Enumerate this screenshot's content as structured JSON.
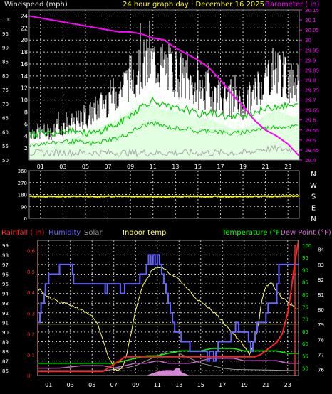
{
  "colors": {
    "wind": "#ffffff",
    "gust_fill": "#ccffcc",
    "avg_wind": "#00cc00",
    "gray": "#a8a8a8",
    "baro": "#ff00ff",
    "dir": "#ffff00",
    "rain": "#ff2020",
    "humidity": "#6666ff",
    "solar": "#999999",
    "indoor": "#ffff66",
    "temp": "#00ff00",
    "dew": "#cc66cc",
    "uv": "#ff99ff",
    "baseline": "#555500",
    "grid": "#ffffff"
  },
  "chart_data": [
    {
      "type": "line",
      "title": "24 hour graph day : December 16 2025",
      "left_label": "Windspeed (mph)",
      "right_label": "Barometer ( in)",
      "left_outer_ticks": [
        "100",
        "95",
        "90",
        "85",
        "80",
        "75",
        "70",
        "65",
        "60",
        "55",
        "50"
      ],
      "left_inner_ticks": [
        "24",
        "22",
        "20",
        "18",
        "16",
        "14",
        "12",
        "10",
        "8",
        "6",
        "4",
        "2"
      ],
      "right_ticks": [
        "30.15",
        "30.1",
        "30.05",
        "30",
        "29.95",
        "29.9",
        "29.85",
        "29.8",
        "29.75",
        "29.7",
        "29.65",
        "29.6",
        "29.55",
        "29.5",
        "29.45",
        "29.4"
      ],
      "x_ticks": [
        "01",
        "03",
        "05",
        "07",
        "09",
        "11",
        "13",
        "15",
        "17",
        "19",
        "21",
        "23"
      ],
      "wind_ylim": [
        0,
        25
      ],
      "baro_ylim": [
        29.4,
        30.15
      ],
      "grid": true,
      "series": [
        {
          "key": "gust",
          "x": [
            0,
            2,
            3,
            4,
            5,
            6,
            7,
            8,
            9,
            10,
            11,
            12,
            13,
            14,
            15,
            16,
            17,
            18,
            19,
            20,
            21,
            22,
            23,
            24
          ],
          "values": [
            6,
            6,
            7,
            8,
            9,
            11,
            13,
            15,
            18,
            20,
            21,
            20,
            19,
            17,
            15,
            15,
            14,
            12,
            12,
            14,
            18,
            20,
            17,
            16
          ]
        },
        {
          "key": "wind",
          "x": [
            0,
            2,
            3,
            4,
            5,
            6,
            7,
            8,
            9,
            10,
            11,
            12,
            13,
            14,
            15,
            16,
            17,
            18,
            19,
            20,
            21,
            22,
            23,
            24
          ],
          "values": [
            3,
            3,
            4,
            5,
            6,
            7,
            8,
            9,
            11,
            12,
            12,
            11,
            11,
            10,
            9,
            9,
            8,
            7,
            7,
            8,
            10,
            11,
            10,
            9
          ]
        },
        {
          "key": "avg_wind",
          "x": [
            0,
            1,
            2,
            3,
            4,
            5,
            6,
            7,
            8,
            9,
            10,
            11,
            12,
            13,
            14,
            15,
            16,
            17,
            18,
            19,
            20,
            21,
            22,
            23,
            24
          ],
          "values": [
            4,
            4.5,
            4.5,
            5,
            5,
            4.5,
            4.5,
            5.5,
            6,
            7.5,
            9,
            10,
            9,
            8.5,
            8.5,
            7.5,
            8,
            7.5,
            7,
            7.5,
            8,
            8.5,
            9,
            9,
            9
          ]
        },
        {
          "key": "baro",
          "x": [
            0,
            1,
            2,
            3,
            4,
            5,
            6,
            7,
            8,
            9,
            10,
            11,
            12,
            13,
            14,
            15,
            16,
            17,
            18,
            19,
            20,
            21,
            22,
            23,
            24
          ],
          "values": [
            30.12,
            30.11,
            30.1,
            30.09,
            30.08,
            30.07,
            30.06,
            30.05,
            30.04,
            30.04,
            30.03,
            30.01,
            30.0,
            29.96,
            29.93,
            29.9,
            29.86,
            29.8,
            29.73,
            29.67,
            29.6,
            29.55,
            29.52,
            29.48,
            29.42
          ]
        }
      ]
    },
    {
      "type": "scatter",
      "y_ticks": [
        "360",
        "270",
        "180",
        "90",
        "0"
      ],
      "compass_labels": [
        "N",
        "W",
        "S",
        "E",
        "N"
      ],
      "ylim": [
        0,
        360
      ],
      "grid": true,
      "series": [
        {
          "key": "direction",
          "x": [
            0,
            2,
            4,
            6,
            8,
            10,
            12,
            14,
            16,
            18,
            20,
            22,
            24
          ],
          "values": [
            172,
            170,
            171,
            169,
            173,
            170,
            168,
            171,
            170,
            169,
            170,
            172,
            175
          ]
        }
      ]
    },
    {
      "type": "line",
      "labels": {
        "rainfall": "Rainfall ( in)",
        "humidity": "Humidity",
        "solar": "Solar",
        "indoor": "Indoor temp",
        "temperature": "Temperature (°F)",
        "dew": "Dew Point (°F)"
      },
      "humidity_ticks": [
        "99",
        "98",
        "97",
        "96",
        "95",
        "94",
        "93",
        "92",
        "91",
        "90",
        "89",
        "88",
        "87",
        "86"
      ],
      "rain_ticks": [
        "0.6",
        "0.5",
        "0.4",
        "0.3",
        "0.2",
        "0.1",
        "0"
      ],
      "temp_left_ticks": [
        "100",
        "95",
        "90",
        "85",
        "80",
        "75",
        "70",
        "65",
        "60",
        "55",
        "50"
      ],
      "temp_right_ticks": [
        "84",
        "83",
        "82",
        "81",
        "80",
        "79",
        "78",
        "77",
        "76"
      ],
      "x_ticks": [
        "01",
        "03",
        "05",
        "07",
        "09",
        "11",
        "13",
        "15",
        "17",
        "19",
        "21",
        "23"
      ],
      "humidity_ylim": [
        85.5,
        99.5
      ],
      "rain_ylim": [
        0,
        0.65
      ],
      "indoor_ylim": [
        75.6,
        84.6
      ],
      "temp_ylim": [
        47,
        102
      ],
      "grid": true,
      "series": [
        {
          "key": "humidity",
          "x": [
            0,
            0.2,
            0.3,
            0.6,
            0.7,
            0.9,
            1.0,
            1.8,
            2.0,
            3.0,
            3.2,
            3.3,
            6.0,
            6.2,
            6.4,
            6.8,
            7.0,
            7.6,
            7.8,
            8.0,
            8.1,
            9.0,
            9.4,
            9.8,
            10.0,
            10.2,
            10.4,
            10.6,
            10.8,
            11.0,
            11.2,
            11.4,
            11.6,
            11.8,
            12.0,
            12.2,
            12.4,
            12.6,
            13.0,
            13.2,
            13.6,
            14.0,
            14.4,
            14.8,
            15.2,
            15.6,
            15.8,
            16.2,
            16.4,
            16.6,
            17.0,
            17.4,
            17.8,
            18.2,
            18.5,
            19.0,
            19.4,
            19.6,
            19.8,
            20.0,
            20.2,
            20.8,
            21.0,
            21.2,
            21.4,
            22.0,
            22.2,
            24.0
          ],
          "values": [
            91,
            92,
            93,
            94,
            95,
            95,
            96,
            96,
            97,
            97,
            96,
            95,
            95,
            94,
            95,
            95,
            95,
            94,
            94,
            95,
            95,
            95,
            96,
            96,
            97,
            98,
            97,
            98,
            97,
            98,
            97,
            96,
            95,
            94,
            93,
            92,
            91,
            90,
            90,
            89,
            89,
            88,
            88,
            88,
            88,
            87,
            88,
            87,
            88,
            89,
            89,
            89,
            90,
            91,
            90,
            90,
            89,
            88,
            89,
            90,
            91,
            91,
            92,
            93,
            93,
            95,
            97,
            97
          ]
        },
        {
          "key": "rain",
          "x": [
            0,
            1,
            2,
            3,
            4,
            5,
            6,
            6.3,
            6.6,
            6.9,
            7.2,
            7.5,
            7.8,
            8,
            8.5,
            9,
            10,
            11,
            12,
            13,
            14,
            15,
            16,
            17,
            18,
            19,
            20,
            20.5,
            21,
            21.5,
            22,
            22.5,
            23,
            23.3,
            23.6,
            24
          ],
          "values": [
            0.02,
            0.02,
            0.02,
            0.02,
            0.02,
            0.02,
            0.02,
            0.03,
            0.04,
            0.05,
            0.06,
            0.07,
            0.08,
            0.09,
            0.09,
            0.09,
            0.09,
            0.09,
            0.09,
            0.09,
            0.09,
            0.09,
            0.09,
            0.09,
            0.09,
            0.09,
            0.09,
            0.1,
            0.12,
            0.14,
            0.16,
            0.2,
            0.3,
            0.4,
            0.52,
            0.65
          ]
        },
        {
          "key": "indoor",
          "x": [
            0,
            0.1,
            0.3,
            0.6,
            1,
            2,
            3,
            4,
            4.5,
            5,
            5.5,
            6,
            6.4,
            6.8,
            7,
            7.4,
            7.8,
            8.2,
            8.6,
            9,
            9.6,
            10,
            10.4,
            10.8,
            11.2,
            11.6,
            12,
            12.5,
            13,
            13.5,
            14,
            14.5,
            15,
            15.5,
            16,
            16.5,
            17,
            17.5,
            18,
            18.5,
            19,
            19.5,
            20,
            20.3,
            20.6,
            21,
            21.5,
            22,
            22.5,
            23,
            23.5,
            24
          ],
          "values": [
            81,
            81.5,
            81.3,
            81,
            80.8,
            80.5,
            80.3,
            80,
            79.8,
            79.5,
            79,
            78,
            77,
            76.5,
            76,
            76,
            76.2,
            77,
            78.5,
            80,
            81.5,
            82,
            82.5,
            82.8,
            82.8,
            82.7,
            82.5,
            82.2,
            82,
            81.6,
            81.2,
            80.8,
            80.5,
            80.2,
            80,
            79.6,
            79.2,
            78.8,
            78.4,
            78,
            77.5,
            77,
            78,
            79,
            80.5,
            81.5,
            81.8,
            81.2,
            80.8,
            80.5,
            80.2,
            80
          ]
        },
        {
          "key": "temp",
          "x": [
            0,
            2,
            4,
            6,
            7,
            8,
            9,
            10,
            11,
            12,
            13,
            14,
            15,
            16,
            17,
            18,
            19,
            20,
            21,
            22,
            23,
            24
          ],
          "values": [
            52,
            52,
            52,
            52,
            52,
            53,
            54,
            55,
            55,
            56,
            57,
            57,
            57,
            58,
            58,
            58,
            57,
            57,
            57,
            57,
            56,
            56
          ]
        },
        {
          "key": "dew",
          "x": [
            0,
            2,
            4,
            6,
            7,
            8,
            9,
            10,
            11,
            12,
            13,
            14,
            15,
            16,
            17,
            18,
            19,
            20,
            21,
            22,
            23,
            24
          ],
          "values": [
            50,
            50,
            51,
            51,
            50,
            51,
            52,
            52,
            53,
            52,
            52,
            52,
            53,
            54,
            54,
            54,
            53,
            53,
            53,
            53,
            52,
            52
          ]
        },
        {
          "key": "solar",
          "x": [
            0,
            6,
            7,
            8,
            9,
            10,
            11,
            12,
            13,
            14,
            15,
            16,
            17,
            18,
            24
          ],
          "values": [
            49,
            49,
            49.5,
            50,
            51,
            53,
            55,
            57,
            56,
            54,
            52,
            51,
            50,
            49.5,
            49
          ]
        }
      ]
    }
  ]
}
